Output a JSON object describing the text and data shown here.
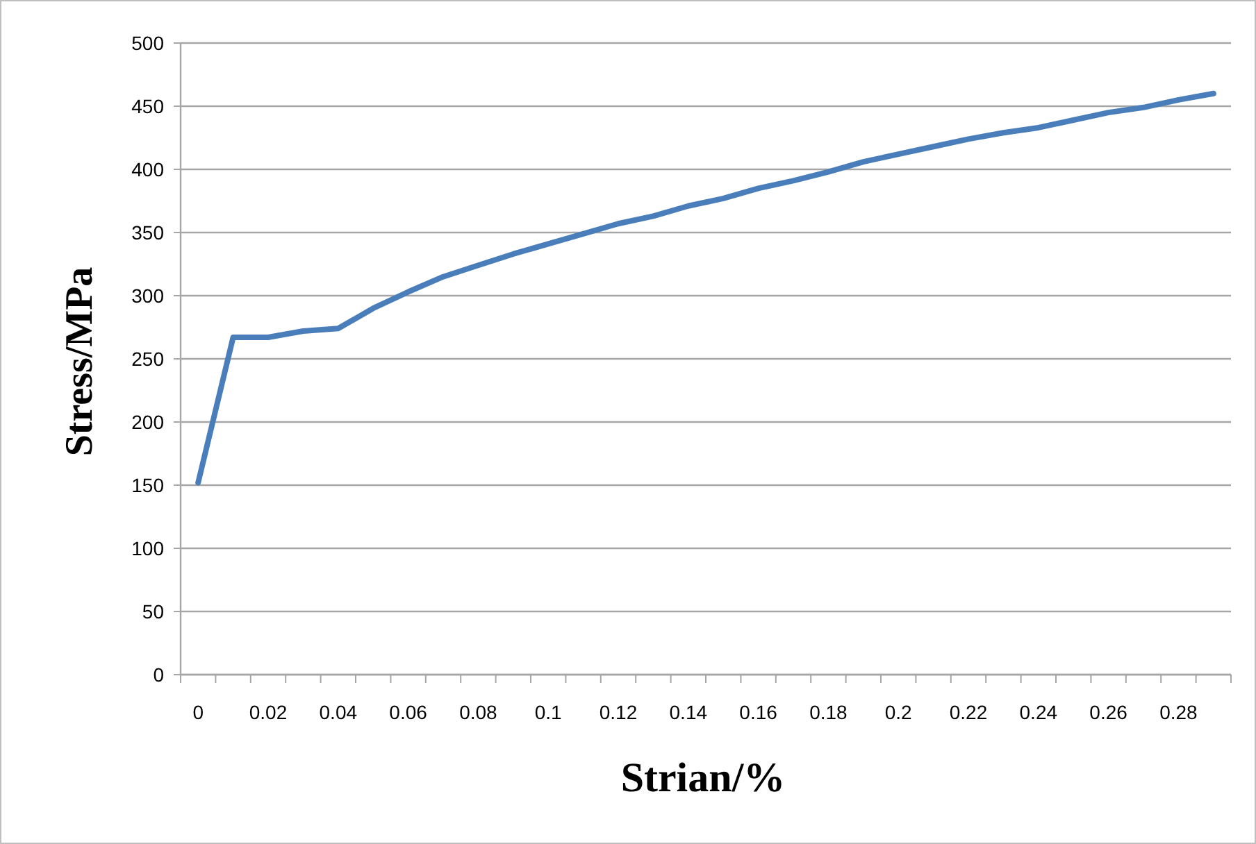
{
  "chart_data": {
    "type": "line",
    "xlabel": "Strian/%",
    "ylabel": "Stress/MPa",
    "categories": [
      "0",
      null,
      "0.02",
      null,
      "0.04",
      null,
      "0.06",
      null,
      "0.08",
      null,
      "0.1",
      null,
      "0.12",
      null,
      "0.14",
      null,
      "0.16",
      null,
      "0.18",
      null,
      "0.2",
      null,
      "0.22",
      null,
      "0.24",
      null,
      "0.26",
      null,
      "0.28",
      null
    ],
    "series": [
      {
        "color": "#4a7ebb",
        "values": [
          152,
          267,
          267,
          272,
          274,
          290,
          303,
          315,
          324,
          333,
          341,
          349,
          357,
          363,
          371,
          377,
          385,
          391,
          398,
          406,
          412,
          418,
          424,
          429,
          433,
          439,
          445,
          449,
          455,
          460
        ]
      }
    ],
    "ylim": [
      0,
      500
    ],
    "yticks": [
      0,
      50,
      100,
      150,
      200,
      250,
      300,
      350,
      400,
      450,
      500
    ],
    "grid": "y",
    "marker": "none",
    "line_style": "solid"
  }
}
